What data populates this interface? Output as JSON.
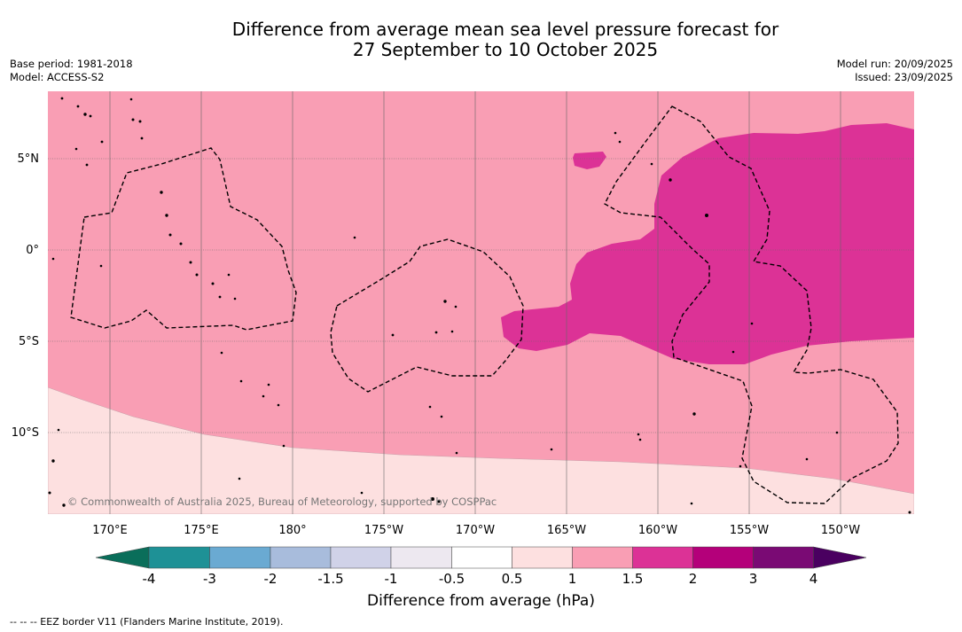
{
  "title": {
    "line1": "Difference from average mean sea level pressure forecast for",
    "line2": "27 September to 10 October 2025"
  },
  "meta_left": {
    "base_period": "Base period: 1981-2018",
    "model": "Model: ACCESS-S2"
  },
  "meta_right": {
    "model_run": "Model run: 20/09/2025",
    "issued": "Issued: 23/09/2025"
  },
  "map": {
    "latitude_labels": [
      "5°N",
      "0°",
      "5°S",
      "10°S"
    ],
    "longitude_labels": [
      "170°E",
      "175°E",
      "180°",
      "175°W",
      "170°W",
      "165°W",
      "160°W",
      "155°W",
      "150°W"
    ],
    "copyright": "© Commonwealth of Australia 2025, Bureau of Meteorology, supported by COSPPac",
    "colors": {
      "band_0_5_to_1": "#fde0e0",
      "band_1_to_1_5": "#f99eb4",
      "band_1_5_to_2": "#dc3296"
    }
  },
  "colorbar": {
    "tick_labels": [
      "-4",
      "-3",
      "-2",
      "-1.5",
      "-1",
      "-0.5",
      "0.5",
      "1",
      "1.5",
      "2",
      "3",
      "4"
    ],
    "colors": [
      "#0a6e5a",
      "#1e9196",
      "#6aaad2",
      "#a8bcdc",
      "#d0d2e8",
      "#ede8f0",
      "#ffffff",
      "#fde0e0",
      "#f99eb4",
      "#dc3296",
      "#b4007a",
      "#7a0a74",
      "#4a0060"
    ],
    "label": "Difference from average (hPa)"
  },
  "footnote": "--  --  -- EEZ border V11 (Flanders Marine Institute, 2019)."
}
